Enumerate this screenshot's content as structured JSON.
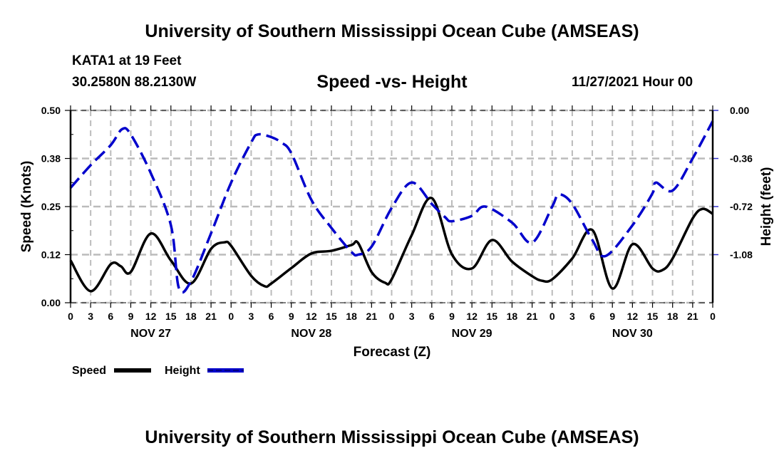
{
  "header": {
    "main_title": "University of Southern Mississippi Ocean Cube (AMSEAS)",
    "station": "KATA1 at 19 Feet",
    "coords": "30.2580N  88.2130W",
    "subtitle": "Speed -vs- Height",
    "run_date": "11/27/2021 Hour 00"
  },
  "footer": {
    "bottom_title": "University of Southern Mississippi Ocean Cube (AMSEAS)"
  },
  "chart_data": {
    "type": "line",
    "title": "Speed -vs- Height",
    "xlabel": "Forecast (Z)",
    "ylabel": "Speed (Knots)",
    "y2label": "Height (feet)",
    "xlim_hours": [
      0,
      96
    ],
    "ylim": [
      0,
      0.5
    ],
    "y2lim": [
      -1.44,
      0.0
    ],
    "grid": true,
    "x_tick_labels": [
      "0",
      "3",
      "6",
      "9",
      "12",
      "15",
      "18",
      "21",
      "0",
      "3",
      "6",
      "9",
      "12",
      "15",
      "18",
      "21",
      "0",
      "3",
      "6",
      "9",
      "12",
      "15",
      "18",
      "21",
      "0",
      "3",
      "6",
      "9",
      "12",
      "15",
      "18",
      "21",
      "0"
    ],
    "day_labels": [
      {
        "label": "NOV 27",
        "hour": 12
      },
      {
        "label": "NOV 28",
        "hour": 36
      },
      {
        "label": "NOV 29",
        "hour": 60
      },
      {
        "label": "NOV 30",
        "hour": 84
      }
    ],
    "y_tick_labels": [
      "0.00",
      "0.12",
      "0.25",
      "0.38",
      "0.50"
    ],
    "y2_tick_labels": [
      "0.00",
      "-0.36",
      "-0.72",
      "-1.08"
    ],
    "legend": [
      {
        "name": "Speed",
        "style": "solid",
        "color": "#000000"
      },
      {
        "name": "Height",
        "style": "dashed",
        "color": "#0000cc"
      }
    ],
    "legend_position": "bottom-left",
    "series": [
      {
        "name": "Speed",
        "axis": "left",
        "color": "#000000",
        "hours": [
          0,
          3,
          6,
          7.5,
          9,
          12,
          15,
          18,
          21,
          23,
          24,
          27,
          29,
          30,
          33,
          36,
          39,
          42,
          43,
          45,
          47,
          48,
          51,
          54,
          57,
          60,
          63,
          66,
          69,
          70.5,
          72,
          75,
          78,
          81,
          84,
          87,
          88.5,
          90,
          93,
          94.5,
          96
        ],
        "values": [
          0.11,
          0.03,
          0.1,
          0.095,
          0.08,
          0.18,
          0.11,
          0.05,
          0.14,
          0.157,
          0.148,
          0.07,
          0.043,
          0.05,
          0.09,
          0.128,
          0.135,
          0.15,
          0.155,
          0.08,
          0.052,
          0.061,
          0.176,
          0.272,
          0.126,
          0.089,
          0.163,
          0.107,
          0.069,
          0.057,
          0.061,
          0.115,
          0.189,
          0.037,
          0.152,
          0.089,
          0.085,
          0.115,
          0.219,
          0.244,
          0.231
        ]
      },
      {
        "name": "Height",
        "axis": "right",
        "color": "#0000cc",
        "hours": [
          0,
          3,
          6,
          7.7,
          9,
          12,
          15,
          16.2,
          18,
          21,
          24,
          27,
          28,
          30,
          31.5,
          33,
          36,
          39,
          42,
          43,
          45,
          48,
          51,
          54,
          56,
          57,
          60,
          62,
          66,
          69,
          72,
          73,
          75,
          78,
          80,
          84,
          87,
          87.5,
          90,
          93,
          96
        ],
        "values": [
          -0.58,
          -0.41,
          -0.26,
          -0.14,
          -0.18,
          -0.47,
          -0.86,
          -1.33,
          -1.28,
          -0.92,
          -0.54,
          -0.24,
          -0.18,
          -0.2,
          -0.24,
          -0.32,
          -0.67,
          -0.88,
          -1.06,
          -1.08,
          -1.02,
          -0.73,
          -0.54,
          -0.7,
          -0.8,
          -0.83,
          -0.79,
          -0.72,
          -0.84,
          -0.99,
          -0.72,
          -0.63,
          -0.7,
          -0.97,
          -1.09,
          -0.86,
          -0.62,
          -0.54,
          -0.6,
          -0.36,
          -0.08
        ]
      }
    ]
  }
}
